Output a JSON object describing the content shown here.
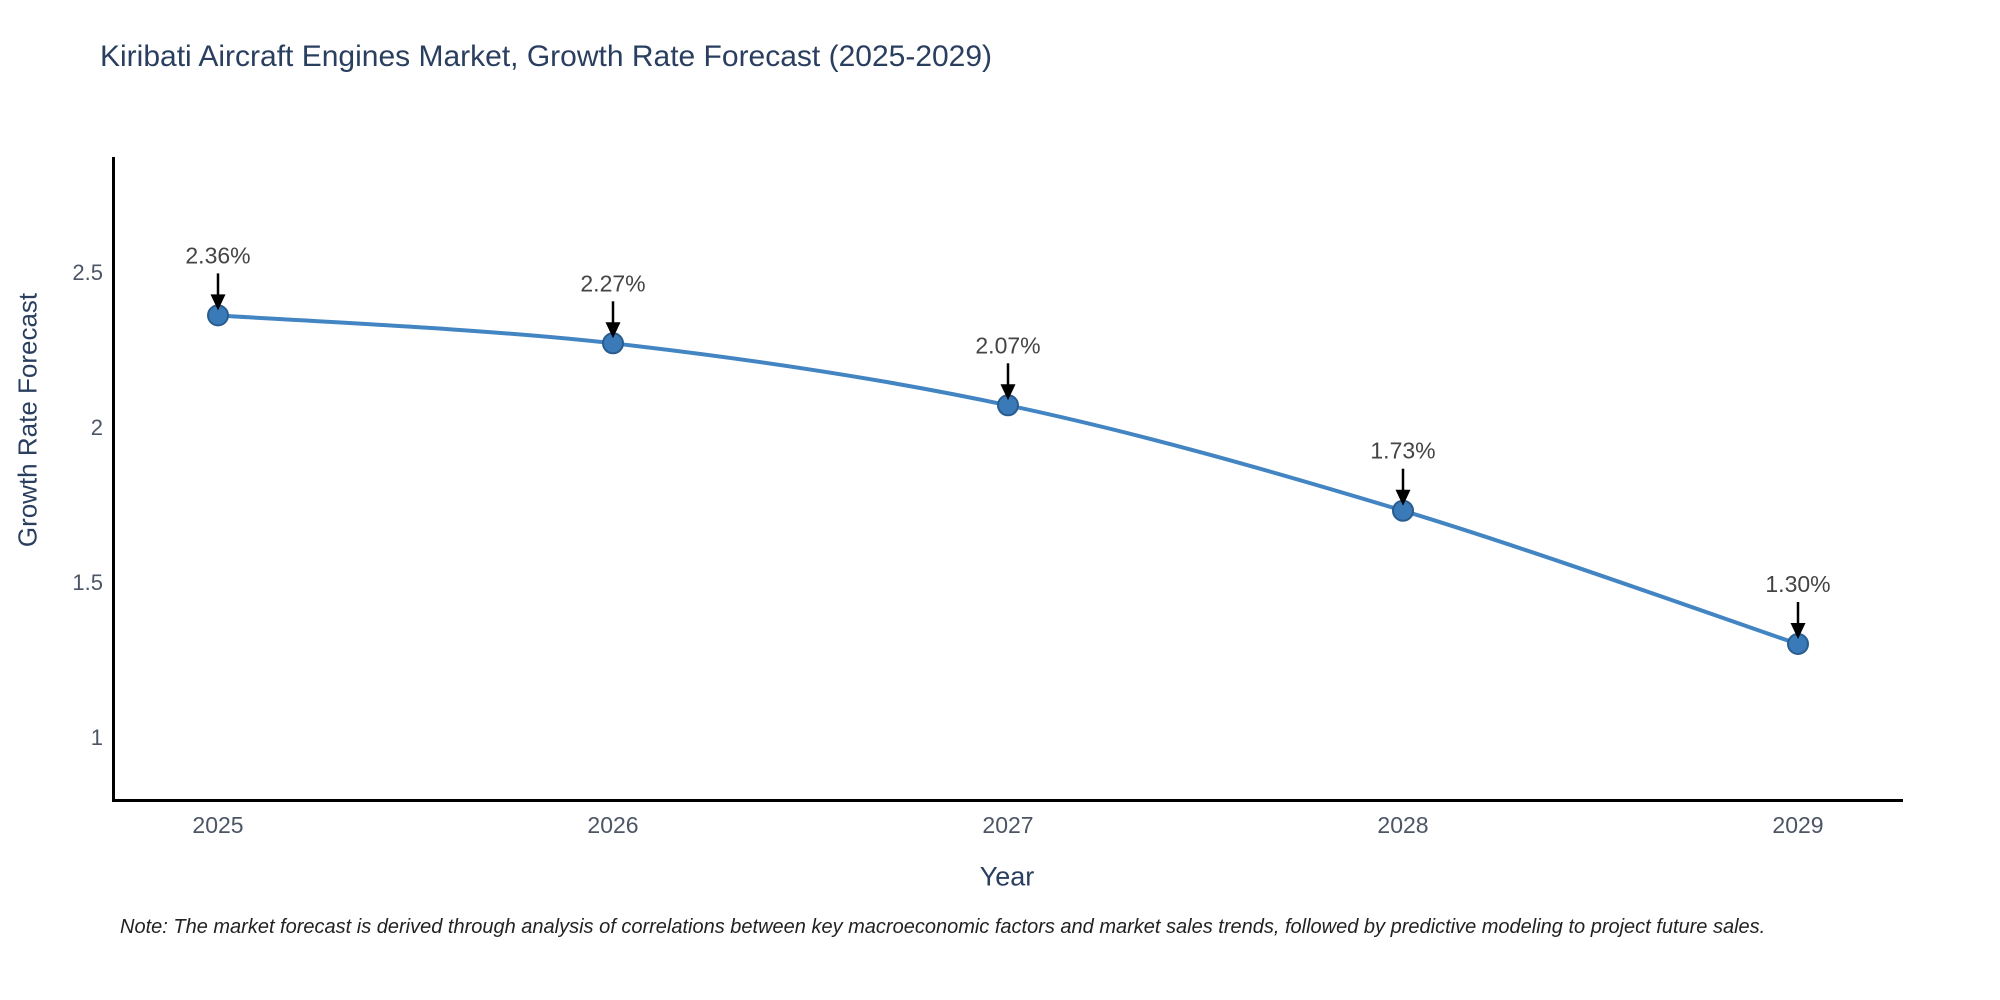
{
  "title": "Kiribati Aircraft Engines Market, Growth Rate Forecast (2025-2029)",
  "note": "Note: The market forecast is derived through analysis of correlations between key macroeconomic factors and market sales trends, followed by predictive modeling to project future sales.",
  "chart_data": {
    "type": "line",
    "title": "Kiribati Aircraft Engines Market, Growth Rate Forecast (2025-2029)",
    "xlabel": "Year",
    "ylabel": "Growth Rate Forecast",
    "categories": [
      "2025",
      "2026",
      "2027",
      "2028",
      "2029"
    ],
    "series": [
      {
        "name": "Growth Rate Forecast",
        "values": [
          2.36,
          2.27,
          2.07,
          1.73,
          1.3
        ]
      }
    ],
    "data_labels": [
      "2.36%",
      "2.27%",
      "2.07%",
      "1.73%",
      "1.30%"
    ],
    "y_ticks": [
      {
        "label": "2.5",
        "value": 2.5
      },
      {
        "label": "2",
        "value": 2.0
      },
      {
        "label": "1.5",
        "value": 1.5
      },
      {
        "label": "1",
        "value": 1.0
      }
    ],
    "ylim": [
      0.82,
      2.87
    ],
    "grid": false,
    "legend_position": "none",
    "line_shape": "spline",
    "annotation_style": "value-label-with-down-arrow",
    "colors": {
      "line": "#4285c2",
      "marker_fill": "#3a7ab8",
      "marker_edge": "#2a5d8f",
      "arrow": "#000000",
      "axis": "#000000",
      "title_text": "#2a3f5f",
      "tick_text": "#4c5565",
      "annotation_text": "#444444"
    }
  }
}
